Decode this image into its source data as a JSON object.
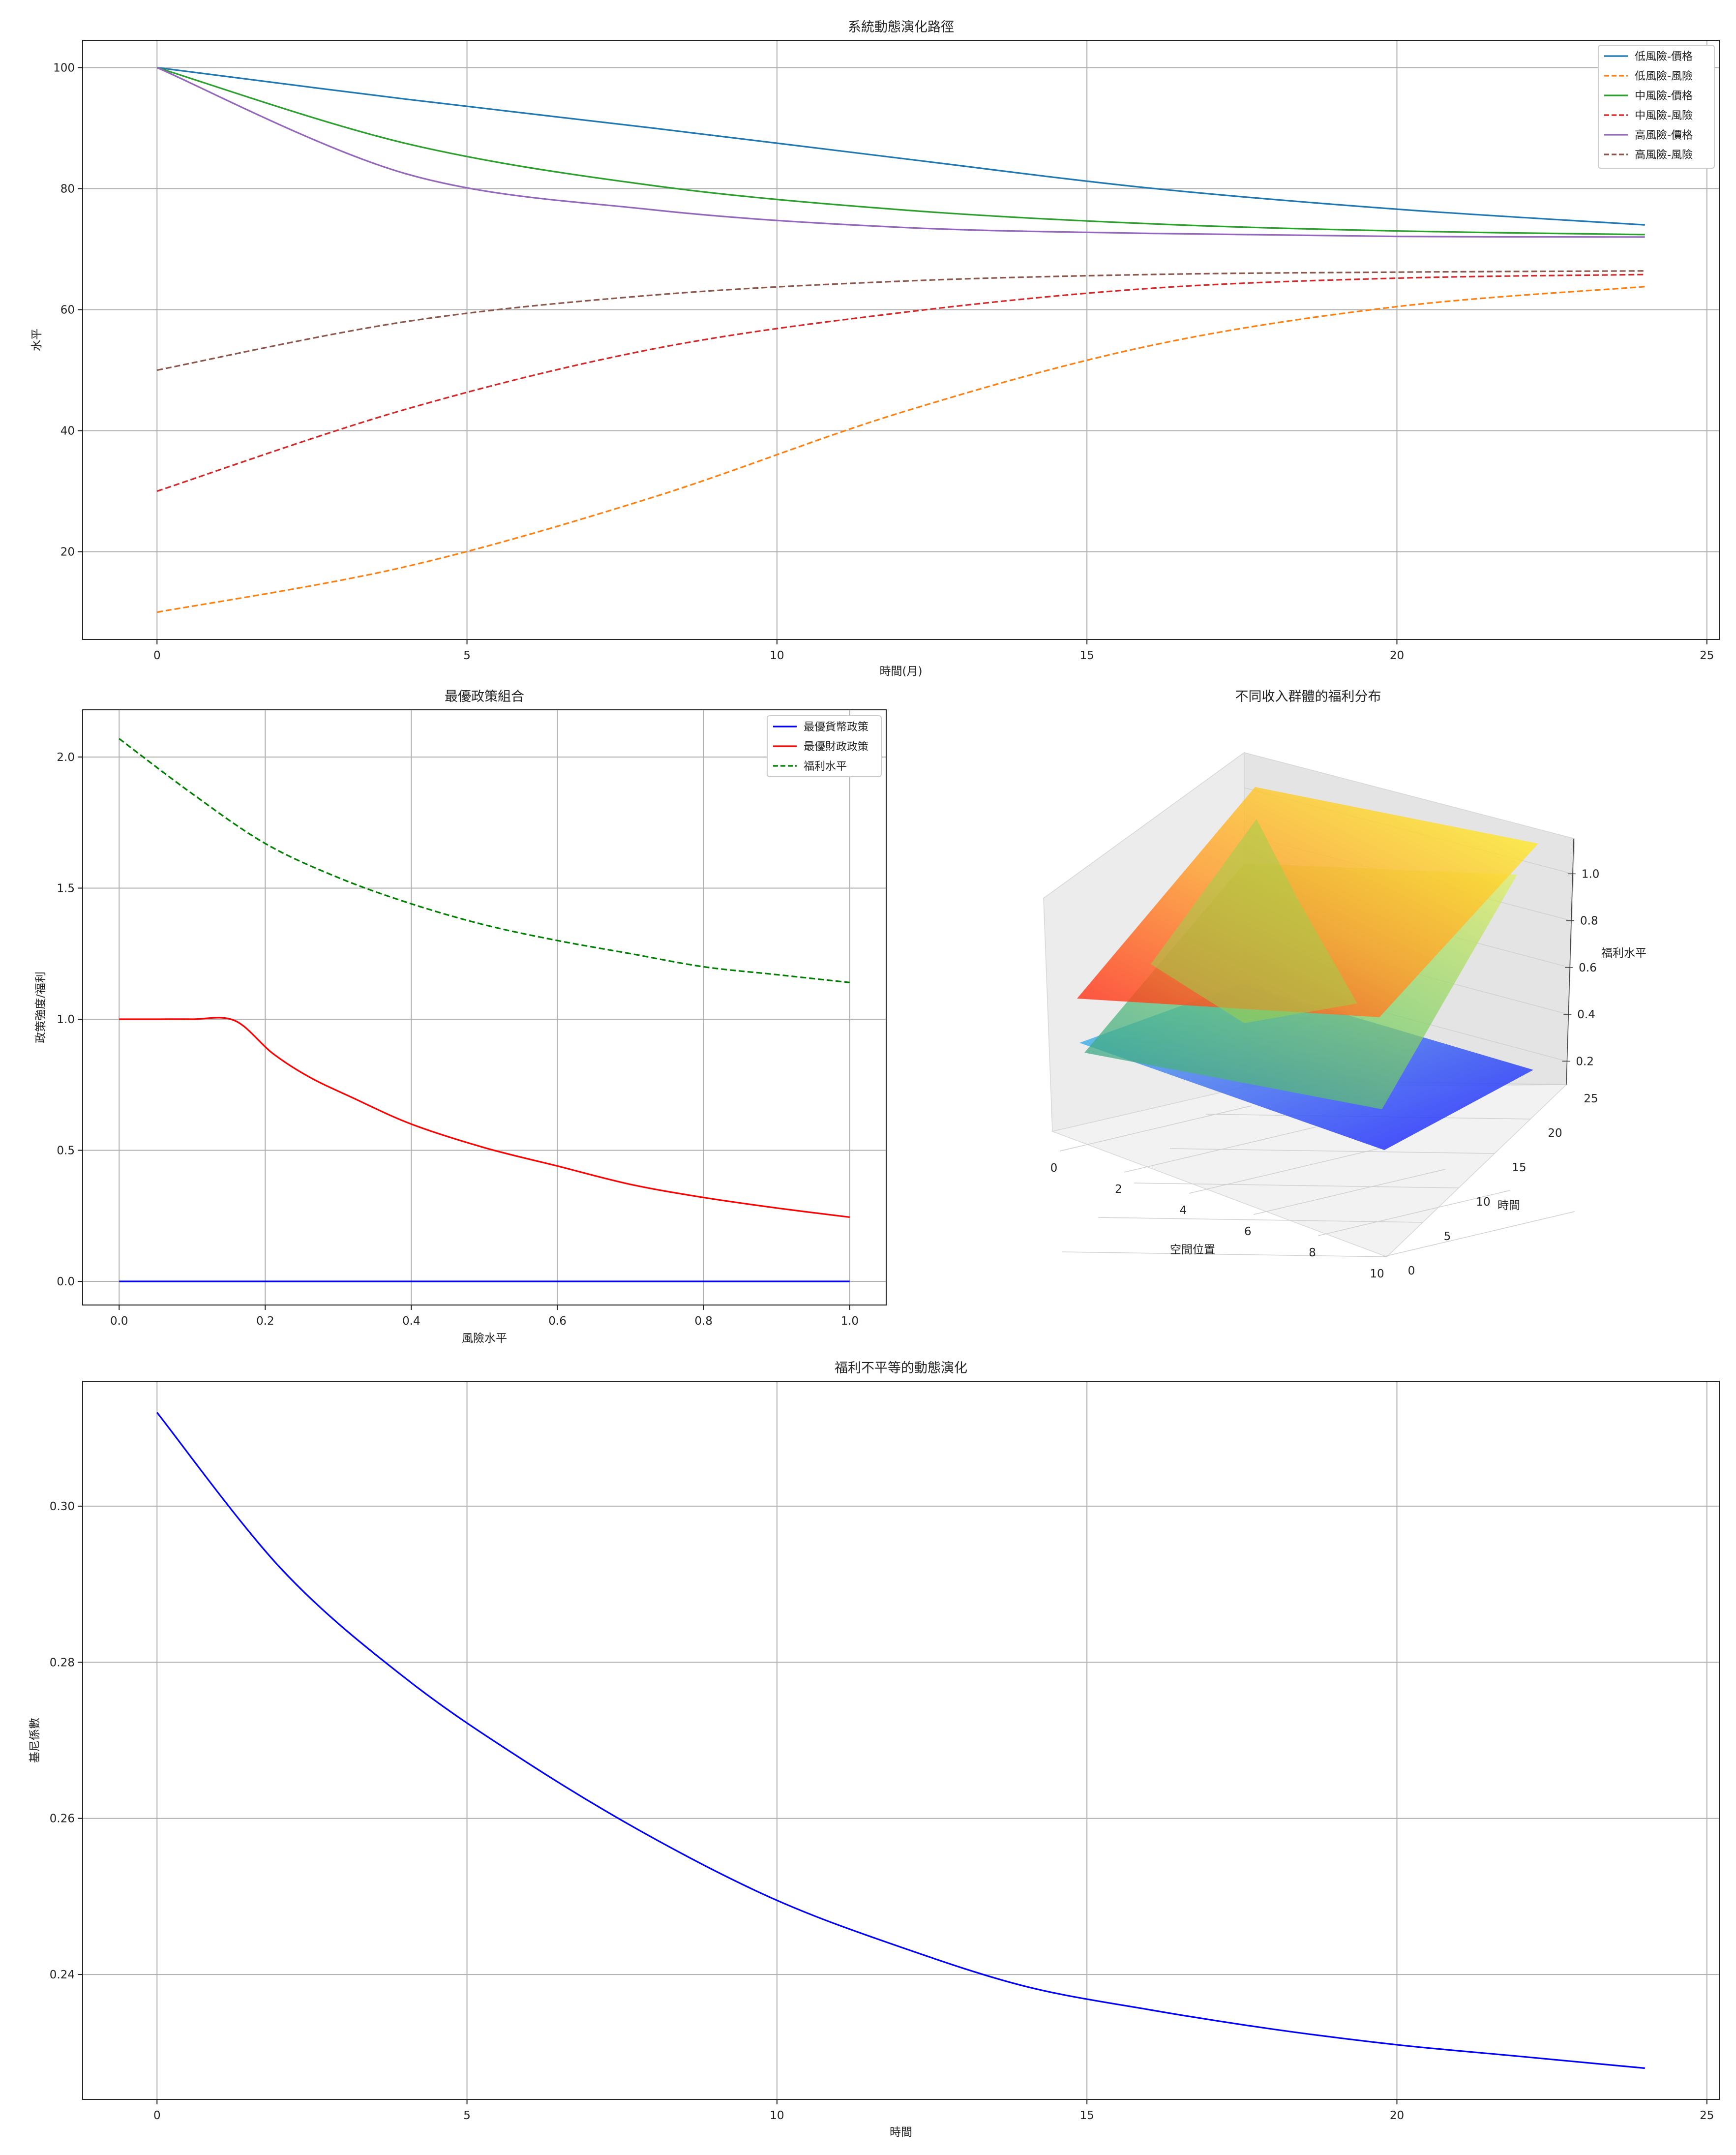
{
  "charts": [
    {
      "id": "top",
      "type": "line",
      "title": "系統動態演化路徑",
      "xlabel": "時間(月)",
      "ylabel": "水平",
      "xlim": [
        -1.2,
        25.2
      ],
      "ylim": [
        5.5,
        104.5
      ],
      "xticks": [
        0,
        5,
        10,
        15,
        20,
        25
      ],
      "yticks": [
        20,
        40,
        60,
        80,
        100
      ],
      "grid": true,
      "legend": "top-right",
      "series": [
        {
          "name": "低風險-價格",
          "color": "#1f77b4",
          "dash": "solid",
          "x": [
            0,
            4,
            8,
            12,
            16,
            20,
            24
          ],
          "values": [
            100,
            94.8,
            90.0,
            85.0,
            80.1,
            76.6,
            74.0
          ]
        },
        {
          "name": "低風險-風險",
          "color": "#ff7f0e",
          "dash": "dashed",
          "x": [
            0,
            4,
            8,
            12,
            16,
            20,
            24
          ],
          "values": [
            10,
            17.5,
            29.0,
            43.0,
            54.0,
            60.5,
            63.8
          ]
        },
        {
          "name": "中風險-價格",
          "color": "#2ca02c",
          "dash": "solid",
          "x": [
            0,
            4,
            8,
            12,
            16,
            20,
            24
          ],
          "values": [
            100,
            87.5,
            80.5,
            76.5,
            74.2,
            73.0,
            72.4
          ]
        },
        {
          "name": "中風險-風險",
          "color": "#d62728",
          "dash": "dashed",
          "x": [
            0,
            4,
            8,
            12,
            16,
            20,
            24
          ],
          "values": [
            30,
            43.5,
            53.5,
            59.5,
            63.5,
            65.2,
            65.8
          ]
        },
        {
          "name": "高風險-價格",
          "color": "#9467bd",
          "dash": "solid",
          "x": [
            0,
            4,
            8,
            12,
            16,
            20,
            24
          ],
          "values": [
            100,
            82.5,
            76.5,
            73.6,
            72.6,
            72.1,
            72.0
          ]
        },
        {
          "name": "高風險-風險",
          "color": "#8c564b",
          "dash": "dashed",
          "x": [
            0,
            4,
            8,
            12,
            16,
            20,
            24
          ],
          "values": [
            50,
            58.0,
            62.4,
            64.7,
            65.8,
            66.2,
            66.4
          ]
        }
      ]
    },
    {
      "id": "mid",
      "type": "line",
      "title": "最優政策組合",
      "xlabel": "風險水平",
      "ylabel": "政策強度/福利",
      "xlim": [
        -0.05,
        1.05
      ],
      "ylim": [
        -0.09,
        2.18
      ],
      "xticks": [
        0.0,
        0.2,
        0.4,
        0.6,
        0.8,
        1.0
      ],
      "xtick_labels": [
        "0.0",
        "0.2",
        "0.4",
        "0.6",
        "0.8",
        "1.0"
      ],
      "yticks": [
        0.0,
        0.5,
        1.0,
        1.5,
        2.0
      ],
      "ytick_labels": [
        "0.0",
        "0.5",
        "1.0",
        "1.5",
        "2.0"
      ],
      "grid": true,
      "legend": "top-right",
      "series": [
        {
          "name": "最優貨幣政策",
          "color": "#0000ff",
          "dash": "solid",
          "x": [
            0,
            0.2,
            0.4,
            0.6,
            0.8,
            1.0
          ],
          "values": [
            0,
            0,
            0,
            0,
            0,
            0
          ]
        },
        {
          "name": "最優財政政策",
          "color": "#ff0000",
          "dash": "solid",
          "x": [
            0,
            0.05,
            0.1,
            0.158,
            0.21,
            0.26,
            0.32,
            0.4,
            0.5,
            0.6,
            0.7,
            0.8,
            0.9,
            1.0
          ],
          "values": [
            1.0,
            1.0,
            1.0,
            0.995,
            0.87,
            0.78,
            0.7,
            0.6,
            0.51,
            0.44,
            0.37,
            0.32,
            0.28,
            0.245
          ]
        },
        {
          "name": "福利水平",
          "color": "#008000",
          "dash": "dashed",
          "x": [
            0,
            0.1,
            0.2,
            0.3,
            0.4,
            0.5,
            0.6,
            0.7,
            0.8,
            0.9,
            1.0
          ],
          "values": [
            2.07,
            1.86,
            1.67,
            1.54,
            1.44,
            1.36,
            1.3,
            1.25,
            1.2,
            1.17,
            1.14
          ]
        }
      ]
    },
    {
      "id": "surface",
      "type": "surface3d",
      "title": "不同收入群體的福利分布",
      "xlabel": "空間位置",
      "ylabel": "時間",
      "zlabel": "福利水平",
      "xticks": [
        0,
        2,
        4,
        6,
        8,
        10
      ],
      "yticks": [
        0,
        5,
        10,
        15,
        20,
        25
      ],
      "zticks": [
        0.2,
        0.4,
        0.6,
        0.8,
        1.0
      ],
      "zlim": [
        0.1,
        1.15
      ],
      "surfaces": [
        {
          "name": "high",
          "colormap": "autumn",
          "z_t0_x0": 0.62,
          "z_t0_x10": 0.8,
          "z_t24_x0": 1.08,
          "z_t24_x10": 1.08
        },
        {
          "name": "mid",
          "colormap": "viridis",
          "z_t0_x0": 0.3,
          "z_t0_x10": 0.55,
          "z_t24_x0": 0.95,
          "z_t24_x10": 0.97
        },
        {
          "name": "low",
          "colormap": "cool",
          "z_t0_x0": 0.22,
          "z_t0_x10": 0.05,
          "z_t24_x0": 0.7,
          "z_t24_x10": 0.2
        }
      ]
    },
    {
      "id": "bottom",
      "type": "line",
      "title": "福利不平等的動態演化",
      "xlabel": "時間",
      "ylabel": "基尼係數",
      "xlim": [
        -1.2,
        25.2
      ],
      "ylim": [
        0.224,
        0.316
      ],
      "xticks": [
        0,
        5,
        10,
        15,
        20,
        25
      ],
      "yticks": [
        0.24,
        0.26,
        0.28,
        0.3
      ],
      "ytick_labels": [
        "0.24",
        "0.26",
        "0.28",
        "0.30"
      ],
      "grid": true,
      "series": [
        {
          "name": "",
          "color": "#0000ff",
          "dash": "solid",
          "x": [
            0,
            2,
            4,
            6,
            8,
            10,
            12,
            14,
            16,
            18,
            20,
            22,
            24
          ],
          "values": [
            0.312,
            0.292,
            0.278,
            0.267,
            0.2575,
            0.2495,
            0.2435,
            0.2385,
            0.2355,
            0.233,
            0.231,
            0.2295,
            0.228
          ]
        }
      ]
    }
  ]
}
